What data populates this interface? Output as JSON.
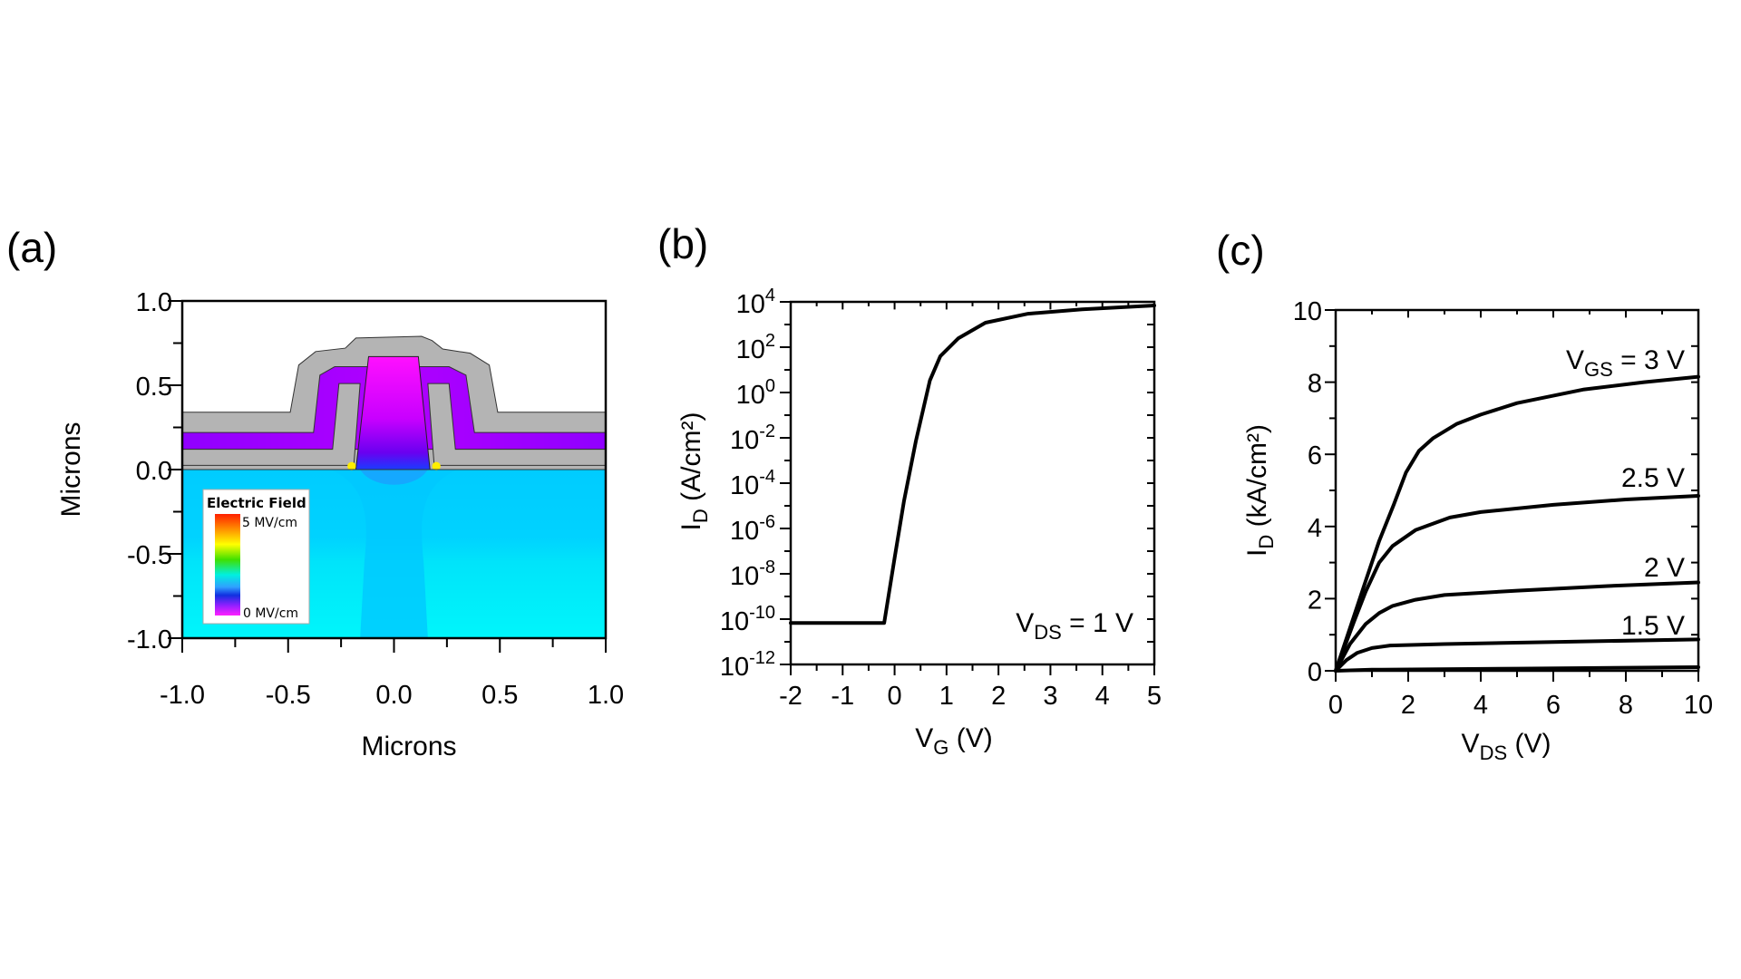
{
  "colors": {
    "curve": "#000000",
    "substrate_top": "#00f2f8",
    "substrate_deep": "#00ccff",
    "oxide": "#b4b4b4",
    "field_low": "#ff00ff",
    "field_mid": "#8a00ff"
  },
  "chart_data": [
    {
      "panel": "(a)",
      "type": "heatmap",
      "xlabel": "Microns",
      "ylabel": "Microns",
      "xlim": [
        -1.0,
        1.0
      ],
      "ylim": [
        -1.0,
        1.0
      ],
      "xticks": [
        "-1.0",
        "-0.5",
        "0.0",
        "0.5",
        "1.0"
      ],
      "yticks": [
        "1.0",
        "0.5",
        "0.0",
        "-0.5",
        "-1.0"
      ],
      "legend": {
        "title": "Electric Field",
        "max_label": "5 MV/cm",
        "min_label": "0 MV/cm",
        "placement": "bottom-left"
      }
    },
    {
      "panel": "(b)",
      "type": "line",
      "xlabel": {
        "main": "V",
        "sub": "G",
        "rest": " (V)"
      },
      "ylabel": {
        "main": "I",
        "sub": "D",
        "rest": " (A/cm²)"
      },
      "xlim": [
        -2,
        5
      ],
      "ylim": [
        1e-12,
        10000.0
      ],
      "yscale": "log",
      "xticks": [
        "-2",
        "-1",
        "0",
        "1",
        "2",
        "3",
        "4",
        "5"
      ],
      "ytick_exponents": [
        "4",
        "2",
        "0",
        "-2",
        "-4",
        "-6",
        "-8",
        "-10",
        "-12"
      ],
      "annotation": {
        "main": "V",
        "sub": "DS",
        "rest": " = 1 V"
      },
      "series": [
        {
          "x": [
            -2,
            -0.2,
            0.0,
            0.18,
            0.41,
            0.68,
            0.88,
            1.23,
            1.75,
            2.57,
            3.61,
            5
          ],
          "y": [
            6.8e-11,
            6.8e-11,
            5e-08,
            1.6e-05,
            0.0074,
            3.4,
            40,
            250,
            1200,
            3000,
            4700,
            6900
          ]
        }
      ]
    },
    {
      "panel": "(c)",
      "type": "line",
      "xlabel": {
        "main": "V",
        "sub": "DS",
        "rest": " (V)"
      },
      "ylabel": {
        "main": "I",
        "sub": "D",
        "rest": " (kA/cm²)"
      },
      "xlim": [
        0,
        10
      ],
      "ylim": [
        0,
        10
      ],
      "xticks": [
        "0",
        "2",
        "4",
        "6",
        "8",
        "10"
      ],
      "yticks": [
        "0",
        "2",
        "4",
        "6",
        "8",
        "10"
      ],
      "series": [
        {
          "name": "V_GS = 3 V",
          "label": {
            "main": "V",
            "sub": "GS",
            "rest": " = 3 V"
          },
          "x": [
            0,
            0.5,
            0.83,
            1.2,
            1.6,
            1.94,
            2.3,
            2.69,
            3.33,
            4,
            5,
            6.85,
            8.5,
            10
          ],
          "y": [
            0,
            1.5,
            2.5,
            3.6,
            4.6,
            5.5,
            6.1,
            6.45,
            6.84,
            7.1,
            7.42,
            7.8,
            8.0,
            8.15
          ]
        },
        {
          "name": "2.5 V",
          "label": {
            "main": "2.5 V",
            "sub": "",
            "rest": ""
          },
          "x": [
            0,
            0.5,
            0.83,
            1.2,
            1.57,
            2.2,
            3.15,
            4,
            6,
            8,
            10
          ],
          "y": [
            0,
            1.35,
            2.2,
            3.0,
            3.46,
            3.9,
            4.25,
            4.4,
            4.6,
            4.75,
            4.85
          ]
        },
        {
          "name": "2 V",
          "label": {
            "main": "2 V",
            "sub": "",
            "rest": ""
          },
          "x": [
            0,
            0.4,
            0.83,
            1.2,
            1.57,
            2.2,
            3,
            5,
            7.5,
            10
          ],
          "y": [
            0,
            0.75,
            1.3,
            1.6,
            1.8,
            1.97,
            2.1,
            2.22,
            2.35,
            2.45
          ]
        },
        {
          "name": "1.5 V",
          "label": {
            "main": "1.5 V",
            "sub": "",
            "rest": ""
          },
          "x": [
            0,
            0.3,
            0.6,
            1,
            1.5,
            3,
            6,
            10
          ],
          "y": [
            0,
            0.3,
            0.5,
            0.63,
            0.7,
            0.74,
            0.8,
            0.87
          ]
        },
        {
          "x": [
            0,
            1,
            5,
            10
          ],
          "y": [
            0,
            0.03,
            0.06,
            0.1
          ]
        }
      ]
    }
  ]
}
